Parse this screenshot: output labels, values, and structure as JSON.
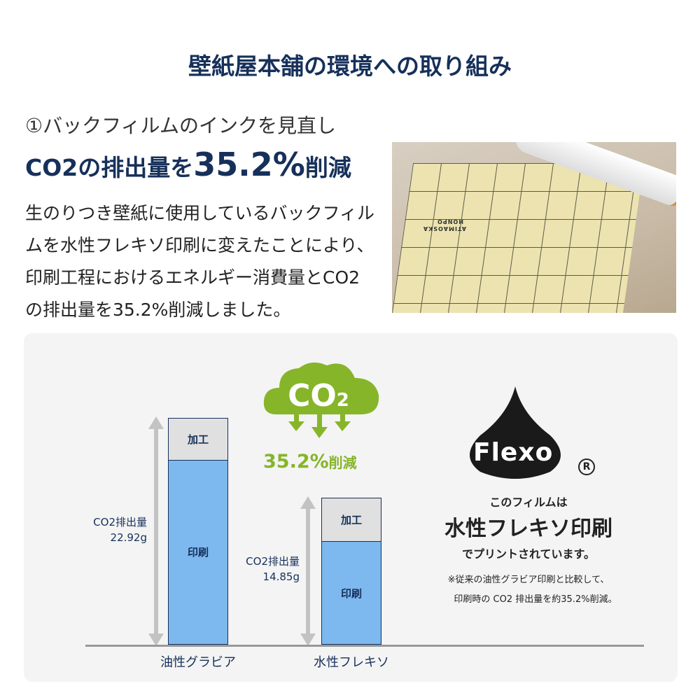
{
  "title": "壁紙屋本舗の環境への取り組み",
  "subtitle": "①バックフィルムのインクを見直し",
  "headline": {
    "prefix": "CO2の排出量を",
    "value": "35.2%",
    "suffix": "削減"
  },
  "body": "生のりつき壁紙に使用しているバックフィルムを水性フレキソ印刷に変えたことにより、印刷工程におけるエネルギー消費量とCO2の排出量を35.2%削減しました。",
  "photo": {
    "sheet_print": "ATIMAOSKA HONPO"
  },
  "cloud": {
    "label": "CO2",
    "reduction_value": "35.2%",
    "reduction_label": "削減",
    "color": "#86b52a"
  },
  "chart_data": {
    "type": "bar",
    "stacked": true,
    "categories": [
      "油性グラビア",
      "水性フレキソ"
    ],
    "series": [
      {
        "name": "印刷",
        "values": [
          18.7,
          10.45
        ]
      },
      {
        "name": "加工",
        "values": [
          4.22,
          4.4
        ]
      }
    ],
    "totals": [
      22.92,
      14.85
    ],
    "total_labels": [
      {
        "line1": "CO2排出量",
        "line2": "22.92g"
      },
      {
        "line1": "CO2排出量",
        "line2": "14.85g"
      }
    ],
    "unit": "g",
    "colors": {
      "印刷": "#7db8ee",
      "加工": "#e0e0e0",
      "outline": "#16305a"
    }
  },
  "flexo": {
    "logo": "Flexo",
    "registered": "R",
    "line1": "このフィルムは",
    "line2": "水性フレキソ印刷",
    "line3": "でプリントされています。",
    "note1": "※従来の油性グラビア印刷と比較して、",
    "note2": "印刷時の CO2 排出量を約35.2%削減。"
  }
}
